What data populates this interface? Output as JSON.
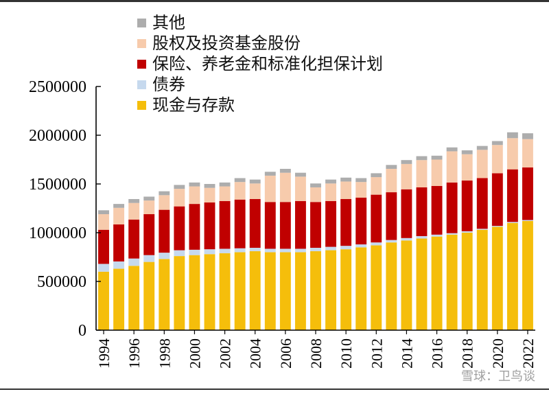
{
  "chart_data": {
    "type": "bar",
    "stacked": true,
    "title": "",
    "xlabel": "",
    "ylabel": "",
    "ylim": [
      0,
      2500000
    ],
    "yticks": [
      0,
      500000,
      1000000,
      1500000,
      2000000,
      2500000
    ],
    "ytick_labels": [
      "0",
      "500000",
      "1000000",
      "1500000",
      "2000000",
      "2500000"
    ],
    "categories": [
      "1994",
      "1995",
      "1996",
      "1997",
      "1998",
      "1999",
      "2000",
      "2001",
      "2002",
      "2003",
      "2004",
      "2005",
      "2006",
      "2007",
      "2008",
      "2009",
      "2010",
      "2011",
      "2012",
      "2013",
      "2014",
      "2015",
      "2016",
      "2017",
      "2018",
      "2019",
      "2020",
      "2021",
      "2022"
    ],
    "xtick_labels": [
      "1994",
      "1996",
      "1998",
      "2000",
      "2002",
      "2004",
      "2006",
      "2008",
      "2010",
      "2012",
      "2014",
      "2016",
      "2018",
      "2020",
      "2022"
    ],
    "legend_position": "top-left",
    "grid": false,
    "series": [
      {
        "name": "现金与存款",
        "color": "#F5BE0B",
        "values": [
          600000,
          630000,
          660000,
          700000,
          730000,
          760000,
          770000,
          780000,
          790000,
          800000,
          810000,
          800000,
          800000,
          800000,
          810000,
          820000,
          830000,
          850000,
          870000,
          900000,
          920000,
          940000,
          960000,
          980000,
          1000000,
          1030000,
          1060000,
          1100000,
          1120000
        ]
      },
      {
        "name": "债券",
        "color": "#C6D9EE",
        "values": [
          80000,
          75000,
          75000,
          70000,
          65000,
          60000,
          55000,
          50000,
          45000,
          40000,
          35000,
          35000,
          35000,
          35000,
          35000,
          35000,
          35000,
          30000,
          30000,
          25000,
          25000,
          25000,
          20000,
          15000,
          15000,
          10000,
          10000,
          10000,
          10000
        ]
      },
      {
        "name": "保险、养老金和标准化担保计划",
        "color": "#C00000",
        "values": [
          350000,
          380000,
          400000,
          420000,
          440000,
          450000,
          470000,
          480000,
          490000,
          500000,
          500000,
          480000,
          480000,
          490000,
          470000,
          470000,
          480000,
          480000,
          490000,
          490000,
          500000,
          500000,
          500000,
          520000,
          520000,
          520000,
          540000,
          540000,
          540000
        ]
      },
      {
        "name": "股权及投资基金股份",
        "color": "#F7CBAC",
        "values": [
          160000,
          170000,
          170000,
          140000,
          150000,
          180000,
          180000,
          150000,
          150000,
          180000,
          160000,
          270000,
          300000,
          250000,
          150000,
          180000,
          180000,
          160000,
          180000,
          240000,
          260000,
          280000,
          270000,
          320000,
          270000,
          290000,
          290000,
          320000,
          290000
        ]
      },
      {
        "name": "其他",
        "color": "#ADADAD",
        "values": [
          40000,
          40000,
          40000,
          40000,
          40000,
          40000,
          40000,
          40000,
          40000,
          40000,
          40000,
          40000,
          40000,
          40000,
          40000,
          40000,
          40000,
          40000,
          40000,
          40000,
          40000,
          40000,
          40000,
          40000,
          40000,
          40000,
          40000,
          60000,
          60000
        ]
      }
    ]
  },
  "watermark": "雪球：卫鸟谈"
}
